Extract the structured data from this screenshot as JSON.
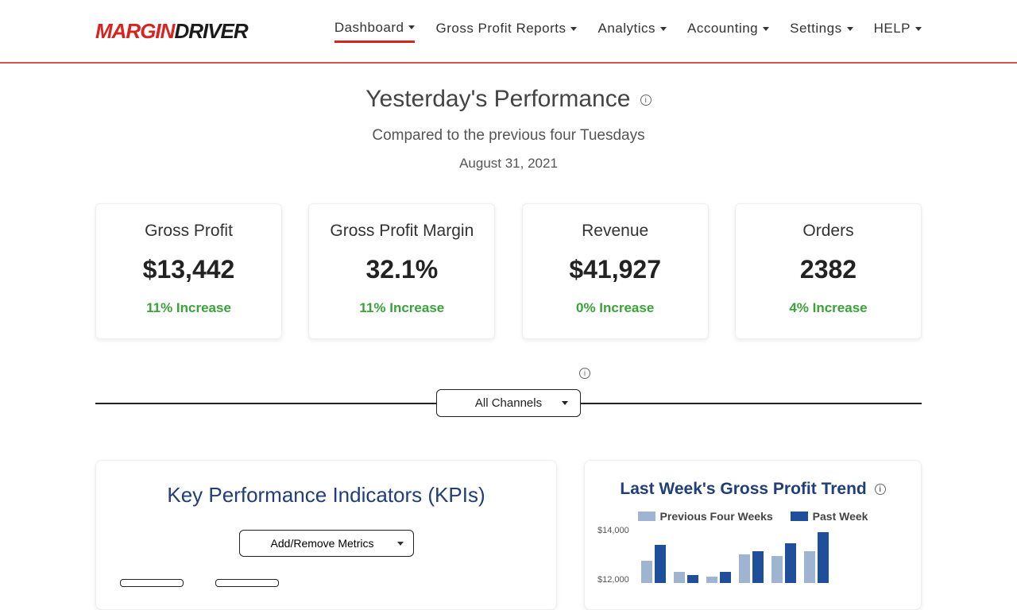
{
  "logo": {
    "part1": "MARGIN",
    "part2": "DRIVER"
  },
  "nav": [
    {
      "label": "Dashboard",
      "active": true
    },
    {
      "label": "Gross Profit Reports"
    },
    {
      "label": "Analytics"
    },
    {
      "label": "Accounting"
    },
    {
      "label": "Settings"
    },
    {
      "label": "HELP"
    }
  ],
  "perf": {
    "title": "Yesterday's Performance",
    "subtitle": "Compared to the previous four Tuesdays",
    "date": "August 31, 2021"
  },
  "cards": [
    {
      "title": "Gross Profit",
      "value": "$13,442",
      "change": "11% Increase"
    },
    {
      "title": "Gross Profit Margin",
      "value": "32.1%",
      "change": "11% Increase"
    },
    {
      "title": "Revenue",
      "value": "$41,927",
      "change": "0% Increase"
    },
    {
      "title": "Orders",
      "value": "2382",
      "change": "4% Increase"
    }
  ],
  "channel_select": "All Channels",
  "kpi": {
    "title": "Key Performance Indicators (KPIs)",
    "metrics_select": "Add/Remove Metrics"
  },
  "chart": {
    "title": "Last Week's Gross Profit Trend",
    "legend_prev": "Previous Four Weeks",
    "legend_past": "Past Week",
    "yticks": [
      "$14,000",
      "$12,000"
    ],
    "colors": {
      "prev": "#9eb4d1",
      "past": "#1f4e9b"
    },
    "bars": [
      {
        "prev": 28,
        "past": 48
      },
      {
        "prev": 14,
        "past": 10
      },
      {
        "prev": 8,
        "past": 14
      },
      {
        "prev": 36,
        "past": 40
      },
      {
        "prev": 34,
        "past": 50
      },
      {
        "prev": 40,
        "past": 64
      }
    ]
  }
}
